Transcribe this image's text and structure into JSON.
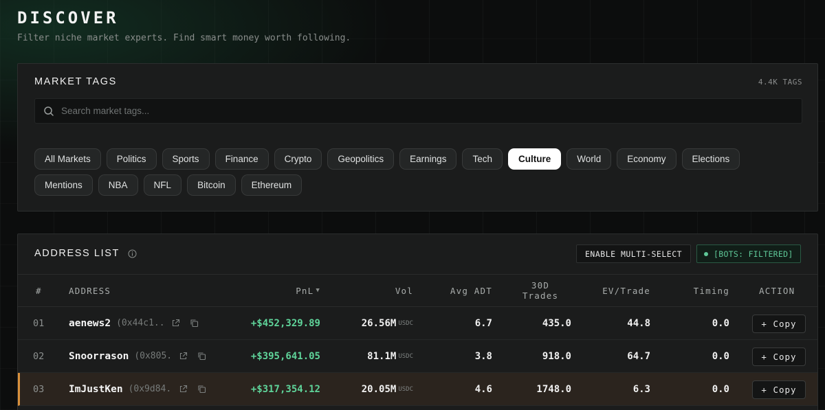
{
  "page": {
    "title": "DISCOVER",
    "subtitle": "Filter niche market experts. Find smart money worth following."
  },
  "market_tags": {
    "title": "MARKET TAGS",
    "count": "4.4K TAGS",
    "search_placeholder": "Search market tags...",
    "active": "Culture",
    "row1": [
      "All Markets",
      "Politics",
      "Sports",
      "Finance",
      "Crypto",
      "Geopolitics",
      "Earnings",
      "Tech",
      "Culture",
      "World",
      "Economy",
      "Elections"
    ],
    "row2": [
      "Mentions",
      "NBA",
      "NFL",
      "Bitcoin",
      "Ethereum"
    ]
  },
  "address_list": {
    "title": "ADDRESS LIST",
    "multi_select_label": "ENABLE MULTI-SELECT",
    "bots_label": "[BOTS: FILTERED]",
    "columns": {
      "rank": "#",
      "address": "ADDRESS",
      "pnl": "PnL",
      "pnl_sort": "▼",
      "vol": "Vol",
      "avg_adt": "Avg ADT",
      "trades_line1": "30D",
      "trades_line2": "Trades",
      "ev": "EV/Trade",
      "timing": "Timing",
      "action": "ACTION"
    },
    "copy_label": "+ Copy",
    "rows": [
      {
        "rank": "01",
        "name": "aenews2",
        "hex": "(0x44c1...",
        "pnl": "+$452,329.89",
        "vol": "26.56M",
        "unit": "USDC",
        "adt": "6.7",
        "trades": "435.0",
        "ev": "44.8",
        "timing": "0.0"
      },
      {
        "rank": "02",
        "name": "Snoorrason",
        "hex": "(0x805...",
        "pnl": "+$395,641.05",
        "vol": "81.1M",
        "unit": "USDC",
        "adt": "3.8",
        "trades": "918.0",
        "ev": "64.7",
        "timing": "0.0"
      },
      {
        "rank": "03",
        "name": "ImJustKen",
        "hex": "(0x9d84...",
        "pnl": "+$317,354.12",
        "vol": "20.05M",
        "unit": "USDC",
        "adt": "4.6",
        "trades": "1748.0",
        "ev": "6.3",
        "timing": "0.0"
      }
    ]
  },
  "colors": {
    "accent_green": "#5fd49a",
    "highlight_border": "#d9903c",
    "active_chip": "#ffffff"
  }
}
